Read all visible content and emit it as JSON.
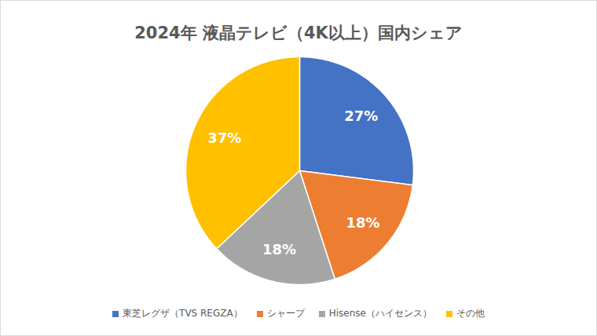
{
  "chart_data": {
    "type": "pie",
    "title": "2024年 液晶テレビ（4K以上）国内シェア",
    "categories": [
      "東芝レグザ（TVS REGZA）",
      "シャープ",
      "Hisense（ハイセンス）",
      "その他"
    ],
    "values": [
      27,
      18,
      18,
      37
    ],
    "value_labels": [
      "27%",
      "18%",
      "18%",
      "37%"
    ],
    "colors": [
      "#4472c4",
      "#ed7d31",
      "#a5a5a5",
      "#ffc000"
    ],
    "data_labels": true,
    "legend": "bottom"
  }
}
